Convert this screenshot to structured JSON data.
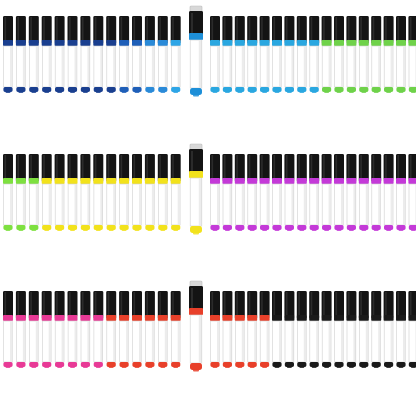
{
  "rows": [
    {
      "name": "row-1",
      "featured_color": "#1d8fd8",
      "left_group": [
        "#1a3f8f",
        "#1a3f8f",
        "#1a3f8f",
        "#1a3f8f",
        "#1a3f8f",
        "#1a3f8f",
        "#1a3f8f",
        "#1a3f8f",
        "#1a3f8f",
        "#1f5fb8",
        "#1f5fb8",
        "#2a8ad8",
        "#2a8ad8",
        "#2ea5e6"
      ],
      "right_group": [
        "#2aa7e0",
        "#2aa7e0",
        "#2aa7e0",
        "#2aa7e0",
        "#2aa7e0",
        "#2aa7e0",
        "#2aa7e0",
        "#2aa7e0",
        "#2aa7e0",
        "#6fd24a",
        "#6fd24a",
        "#6fd24a",
        "#6fd24a",
        "#6fd24a",
        "#6fd24a",
        "#6fd24a",
        "#6fd24a"
      ]
    },
    {
      "name": "row-2",
      "featured_color": "#f2e21c",
      "left_group": [
        "#7ee040",
        "#7ee040",
        "#7ee040",
        "#f2e21c",
        "#f2e21c",
        "#f2e21c",
        "#f2e21c",
        "#f2e21c",
        "#f2e21c",
        "#f2e21c",
        "#f2e21c",
        "#f2e21c",
        "#f2e21c",
        "#f2e21c"
      ],
      "right_group": [
        "#c43ad8",
        "#c43ad8",
        "#c43ad8",
        "#c43ad8",
        "#c43ad8",
        "#c43ad8",
        "#c43ad8",
        "#c43ad8",
        "#c43ad8",
        "#c43ad8",
        "#c43ad8",
        "#c43ad8",
        "#c43ad8",
        "#c43ad8",
        "#c43ad8",
        "#c43ad8",
        "#c43ad8"
      ]
    },
    {
      "name": "row-3",
      "featured_color": "#e8402a",
      "left_group": [
        "#e83a96",
        "#e83a96",
        "#e83a96",
        "#e83a96",
        "#e83a96",
        "#e83a96",
        "#e83a96",
        "#e83a96",
        "#e8402a",
        "#e8402a",
        "#e8402a",
        "#e8402a",
        "#e8402a",
        "#e8402a"
      ],
      "right_group": [
        "#e8402a",
        "#e8402a",
        "#e8402a",
        "#e8402a",
        "#e8402a",
        "#1a1a1a",
        "#1a1a1a",
        "#1a1a1a",
        "#1a1a1a",
        "#1a1a1a",
        "#1a1a1a",
        "#1a1a1a",
        "#1a1a1a",
        "#1a1a1a",
        "#1a1a1a",
        "#1a1a1a",
        "#1a1a1a"
      ]
    }
  ]
}
